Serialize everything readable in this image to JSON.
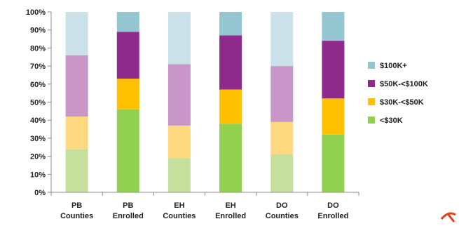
{
  "chart_data": {
    "type": "bar",
    "stacked": true,
    "categories": [
      [
        "PB",
        "Counties"
      ],
      [
        "PB",
        "Enrolled"
      ],
      [
        "EH",
        "Counties"
      ],
      [
        "EH",
        "Enrolled"
      ],
      [
        "DO",
        "Counties"
      ],
      [
        "DO",
        "Enrolled"
      ]
    ],
    "ylim": [
      0,
      100
    ],
    "ytick_labels": [
      "0%",
      "10%",
      "20%",
      "30%",
      "40%",
      "50%",
      "60%",
      "70%",
      "80%",
      "90%",
      "100%"
    ],
    "grid": false,
    "legend_position": "right",
    "series": [
      {
        "name": "<$30K",
        "values": [
          24,
          46,
          19,
          38,
          21,
          32
        ],
        "colors": [
          "#c4e09c",
          "#92d050",
          "#c4e09c",
          "#92d050",
          "#c4e09c",
          "#92d050"
        ]
      },
      {
        "name": "$30K-<$50K",
        "values": [
          18,
          17,
          18,
          19,
          18,
          20
        ],
        "colors": [
          "#ffd97f",
          "#ffc000",
          "#ffd97f",
          "#ffc000",
          "#ffd97f",
          "#ffc000"
        ]
      },
      {
        "name": "$50K-<$100K",
        "values": [
          34,
          26,
          34,
          30,
          31,
          32
        ],
        "colors": [
          "#c896c8",
          "#8e2a8c",
          "#c896c8",
          "#8e2a8c",
          "#c896c8",
          "#8e2a8c"
        ]
      },
      {
        "name": "$100K+",
        "values": [
          24,
          11,
          29,
          13,
          30,
          16
        ],
        "colors": [
          "#cbe1e9",
          "#94c6d1",
          "#cbe1e9",
          "#94c6d1",
          "#cbe1e9",
          "#94c6d1"
        ]
      }
    ],
    "legend_order": [
      "$100K+",
      "$50K-<$100K",
      "$30K-<$50K",
      "<$30K"
    ]
  }
}
